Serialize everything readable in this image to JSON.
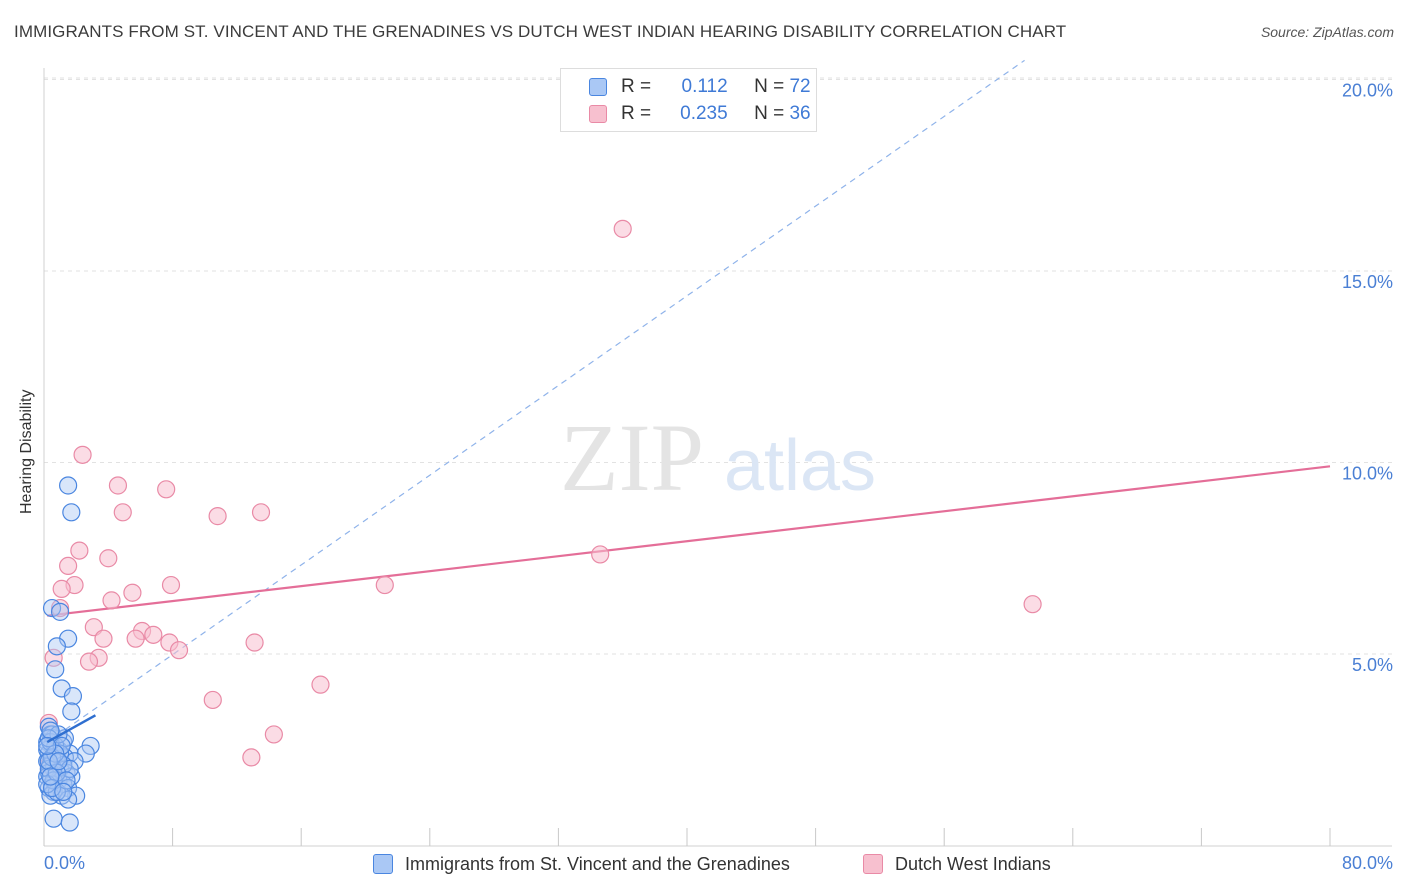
{
  "title": "IMMIGRANTS FROM ST. VINCENT AND THE GRENADINES VS DUTCH WEST INDIAN HEARING DISABILITY CORRELATION CHART",
  "source": "Source: ZipAtlas.com",
  "watermark": {
    "zip": "ZIP",
    "atlas": "atlas"
  },
  "legend_top": [
    {
      "r_label": "R =",
      "r_value": "0.112",
      "n_label": "N =",
      "n_value": "72"
    },
    {
      "r_label": "R =",
      "r_value": "0.235",
      "n_label": "N =",
      "n_value": "36"
    }
  ],
  "colors": {
    "blue_fill": "#aac8f5",
    "blue_stroke": "#4a86e0",
    "blue_line": "#2f6fd0",
    "pink_fill": "#f7c0cf",
    "pink_stroke": "#e98aa6",
    "pink_line": "#e46e98",
    "axis_text": "#4a7fd4",
    "grid": "#e2e2e2"
  },
  "chart_data": {
    "type": "scatter",
    "title": "IMMIGRANTS FROM ST. VINCENT AND THE GRENADINES VS DUTCH WEST INDIAN HEARING DISABILITY CORRELATION CHART",
    "xlabel": "",
    "ylabel": "Hearing Disability",
    "xlim": [
      0,
      80
    ],
    "ylim": [
      0,
      20.5
    ],
    "x_tick_labels": [
      "0.0%",
      "80.0%"
    ],
    "y_ticks": [
      5,
      10,
      15,
      20
    ],
    "y_tick_labels": [
      "5.0%",
      "10.0%",
      "15.0%",
      "20.0%"
    ],
    "series": [
      {
        "name": "Immigrants from St. Vincent and the Grenadines",
        "color": "#4a86e0",
        "R": 0.112,
        "N": 72,
        "points": [
          [
            1.5,
            9.4
          ],
          [
            1.7,
            8.7
          ],
          [
            0.5,
            6.2
          ],
          [
            1.0,
            6.1
          ],
          [
            1.5,
            5.4
          ],
          [
            0.8,
            5.2
          ],
          [
            0.7,
            4.6
          ],
          [
            1.1,
            4.1
          ],
          [
            1.8,
            3.9
          ],
          [
            1.7,
            3.5
          ],
          [
            0.3,
            3.1
          ],
          [
            0.4,
            2.9
          ],
          [
            0.6,
            2.8
          ],
          [
            0.2,
            2.7
          ],
          [
            1.2,
            2.7
          ],
          [
            2.9,
            2.6
          ],
          [
            0.5,
            2.6
          ],
          [
            0.9,
            2.5
          ],
          [
            1.6,
            2.4
          ],
          [
            0.3,
            2.4
          ],
          [
            2.6,
            2.4
          ],
          [
            0.6,
            2.3
          ],
          [
            1.3,
            2.3
          ],
          [
            0.8,
            2.2
          ],
          [
            0.2,
            2.2
          ],
          [
            1.9,
            2.2
          ],
          [
            0.4,
            2.1
          ],
          [
            1.0,
            2.0
          ],
          [
            0.6,
            2.0
          ],
          [
            0.3,
            1.9
          ],
          [
            1.4,
            1.9
          ],
          [
            0.7,
            1.8
          ],
          [
            1.7,
            1.8
          ],
          [
            0.2,
            1.8
          ],
          [
            0.9,
            1.7
          ],
          [
            0.5,
            1.6
          ],
          [
            1.2,
            1.6
          ],
          [
            0.3,
            1.5
          ],
          [
            1.5,
            1.5
          ],
          [
            0.6,
            1.4
          ],
          [
            2.0,
            1.3
          ],
          [
            1.1,
            1.3
          ],
          [
            0.4,
            1.3
          ],
          [
            1.5,
            1.2
          ],
          [
            0.8,
            1.4
          ],
          [
            0.5,
            2.9
          ],
          [
            1.3,
            2.8
          ],
          [
            0.2,
            2.5
          ],
          [
            0.7,
            2.6
          ],
          [
            1.0,
            2.4
          ],
          [
            0.3,
            2.0
          ],
          [
            0.6,
            1.7
          ],
          [
            1.2,
            2.1
          ],
          [
            0.4,
            2.7
          ],
          [
            0.9,
            2.9
          ],
          [
            0.2,
            1.6
          ],
          [
            1.6,
            2.0
          ],
          [
            0.5,
            2.3
          ],
          [
            0.8,
            1.9
          ],
          [
            0.3,
            2.8
          ],
          [
            0.6,
            0.7
          ],
          [
            1.6,
            0.6
          ],
          [
            0.4,
            3.0
          ],
          [
            1.1,
            2.6
          ],
          [
            0.7,
            2.4
          ],
          [
            0.3,
            2.2
          ],
          [
            1.4,
            1.7
          ],
          [
            0.5,
            1.5
          ],
          [
            0.2,
            2.6
          ],
          [
            0.9,
            2.2
          ],
          [
            0.4,
            1.8
          ],
          [
            1.2,
            1.4
          ]
        ],
        "trend_solid": [
          [
            0.2,
            2.7
          ],
          [
            3.2,
            3.4
          ]
        ],
        "trend_dashed": [
          [
            0.2,
            2.7
          ],
          [
            61.0,
            20.5
          ]
        ]
      },
      {
        "name": "Dutch West Indians",
        "color": "#e98aa6",
        "R": 0.235,
        "N": 36,
        "points": [
          [
            36.0,
            16.1
          ],
          [
            2.4,
            10.2
          ],
          [
            4.6,
            9.4
          ],
          [
            7.6,
            9.3
          ],
          [
            4.9,
            8.7
          ],
          [
            10.8,
            8.6
          ],
          [
            13.5,
            8.7
          ],
          [
            2.2,
            7.7
          ],
          [
            4.0,
            7.5
          ],
          [
            34.6,
            7.6
          ],
          [
            1.5,
            7.3
          ],
          [
            1.9,
            6.8
          ],
          [
            1.1,
            6.7
          ],
          [
            7.9,
            6.8
          ],
          [
            21.2,
            6.8
          ],
          [
            5.5,
            6.6
          ],
          [
            4.2,
            6.4
          ],
          [
            61.5,
            6.3
          ],
          [
            1.0,
            6.2
          ],
          [
            3.1,
            5.7
          ],
          [
            6.1,
            5.6
          ],
          [
            6.8,
            5.5
          ],
          [
            5.7,
            5.4
          ],
          [
            3.7,
            5.4
          ],
          [
            7.8,
            5.3
          ],
          [
            13.1,
            5.3
          ],
          [
            8.4,
            5.1
          ],
          [
            0.6,
            4.9
          ],
          [
            3.4,
            4.9
          ],
          [
            2.8,
            4.8
          ],
          [
            17.2,
            4.2
          ],
          [
            10.5,
            3.8
          ],
          [
            14.3,
            2.9
          ],
          [
            12.9,
            2.3
          ],
          [
            0.3,
            3.2
          ],
          [
            0.3,
            2.1
          ]
        ],
        "trend_solid": [
          [
            0.2,
            6.0
          ],
          [
            80.0,
            9.9
          ]
        ]
      }
    ],
    "legend_position": "top-center"
  }
}
